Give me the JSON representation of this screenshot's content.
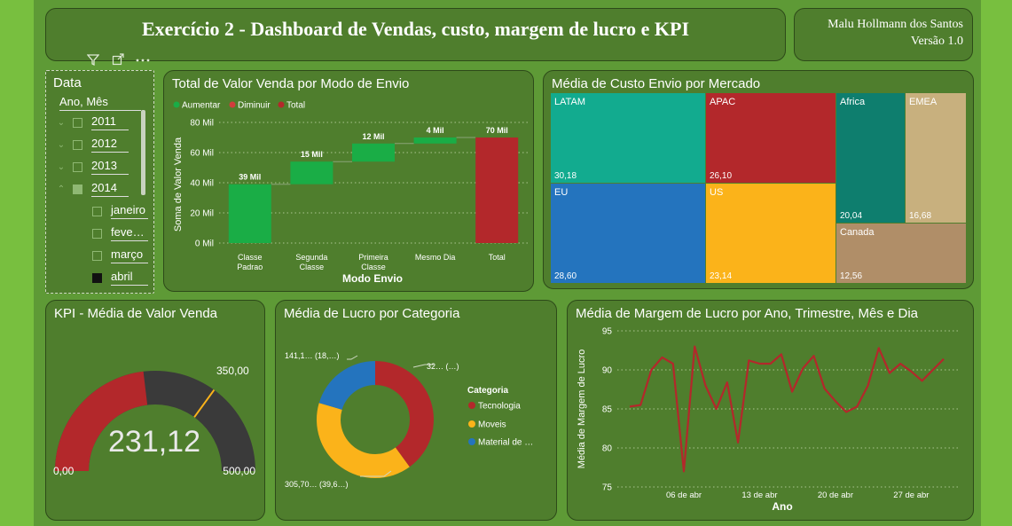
{
  "header": {
    "title": "Exercício 2 - Dashboard de Vendas, custo, margem de lucro e KPI",
    "author": "Malu Hollmann dos Santos",
    "version": "Versão 1.0"
  },
  "slicer": {
    "title": "Data",
    "subtitle": "Ano, Mês",
    "items": [
      {
        "label": "2011",
        "state": "collapsed"
      },
      {
        "label": "2012",
        "state": "collapsed"
      },
      {
        "label": "2013",
        "state": "collapsed"
      },
      {
        "label": "2014",
        "state": "expanded-partial"
      },
      {
        "label": "janeiro",
        "state": "unchecked"
      },
      {
        "label": "feve…",
        "state": "unchecked"
      },
      {
        "label": "março",
        "state": "unchecked"
      },
      {
        "label": "abril",
        "state": "checked"
      }
    ]
  },
  "waterfall": {
    "title": "Total de Valor Venda por Modo de Envio",
    "legend": [
      {
        "label": "Aumentar",
        "color": "#1aad46"
      },
      {
        "label": "Diminuir",
        "color": "#d13c3c"
      },
      {
        "label": "Total",
        "color": "#b3282b"
      }
    ],
    "ylabel": "Soma de Valor Venda",
    "xlabel": "Modo Envio",
    "yticks": [
      "80 Mil",
      "60 Mil",
      "40 Mil",
      "20 Mil",
      "0 Mil"
    ]
  },
  "treemap": {
    "title": "Média de Custo Envio por Mercado",
    "cells": [
      {
        "label": "LATAM",
        "value": "30,18",
        "color": "#12ab8f"
      },
      {
        "label": "APAC",
        "value": "26,10",
        "color": "#b3282b"
      },
      {
        "label": "Africa",
        "value": "20,04",
        "color": "#0e7e6e"
      },
      {
        "label": "EMEA",
        "value": "16,68",
        "color": "#c8b07e"
      },
      {
        "label": "EU",
        "value": "28,60",
        "color": "#2474be"
      },
      {
        "label": "US",
        "value": "23,14",
        "color": "#fbb31a"
      },
      {
        "label": "Canada",
        "value": "12,56",
        "color": "#b08e68"
      }
    ]
  },
  "kpi": {
    "title": "KPI - Média de Valor Venda",
    "value": "231,12",
    "min_label": "0,00",
    "max_label": "500,00",
    "target_label": "350,00",
    "value_fraction": 0.4622,
    "target_fraction": 0.7
  },
  "donut": {
    "title": "Média de Lucro por Categoria",
    "legend_title": "Categoria",
    "slices": [
      {
        "name": "Tecnologia",
        "legend": "Tecnologia",
        "label": "32… (…)",
        "color": "#b3282b",
        "share": 0.4
      },
      {
        "name": "Moveis",
        "legend": "Moveis",
        "label": "305,70… (39,6…)",
        "color": "#fbb31a",
        "share": 0.396
      },
      {
        "name": "Material de …",
        "legend": "Material de …",
        "label": "141,1… (18,…)",
        "color": "#2474be",
        "share": 0.204
      }
    ]
  },
  "line": {
    "title": "Média de Margem de Lucro por Ano, Trimestre, Mês e Dia",
    "ylabel": "Média de Margem de Lucro",
    "xlabel": "Ano",
    "yticks": [
      "95",
      "90",
      "85",
      "80",
      "75"
    ],
    "xticks": [
      "06 de abr",
      "13 de abr",
      "20 de abr",
      "27 de abr"
    ]
  },
  "chart_data": [
    {
      "type": "bar",
      "title": "Total de Valor Venda por Modo de Envio",
      "xlabel": "Modo Envio",
      "ylabel": "Soma de Valor Venda",
      "ylim": [
        0,
        80
      ],
      "categories": [
        "Classe Padrao",
        "Segunda Classe",
        "Primeira Classe",
        "Mesmo Dia",
        "Total"
      ],
      "values": [
        39,
        15,
        12,
        4,
        70
      ],
      "value_labels": [
        "39 Mil",
        "15 Mil",
        "12 Mil",
        "4 Mil",
        "70 Mil"
      ],
      "kinds": [
        "increase",
        "increase",
        "increase",
        "increase",
        "total"
      ],
      "grid": true,
      "legend": "top-left"
    },
    {
      "type": "line",
      "title": "Média de Margem de Lucro por Ano, Trimestre, Mês e Dia",
      "xlabel": "Ano",
      "ylabel": "Média de Margem de Lucro",
      "ylim": [
        75,
        95
      ],
      "x": [
        1,
        2,
        3,
        4,
        5,
        6,
        7,
        8,
        9,
        10,
        11,
        12,
        13,
        14,
        15,
        16,
        17,
        18,
        19,
        20,
        21,
        22,
        23,
        24,
        25,
        26,
        27,
        28,
        29,
        30
      ],
      "series": [
        {
          "values": [
            85.3,
            85.5,
            90.0,
            91.6,
            90.8,
            77.0,
            93.0,
            88.0,
            85.0,
            88.4,
            80.7,
            91.2,
            90.8,
            90.8,
            92.0,
            87.2,
            90.2,
            91.8,
            87.6,
            86.0,
            84.6,
            85.3,
            88.0,
            92.8,
            89.6,
            90.8,
            89.8,
            88.6,
            90.0,
            91.4
          ]
        }
      ],
      "grid": true
    }
  ]
}
